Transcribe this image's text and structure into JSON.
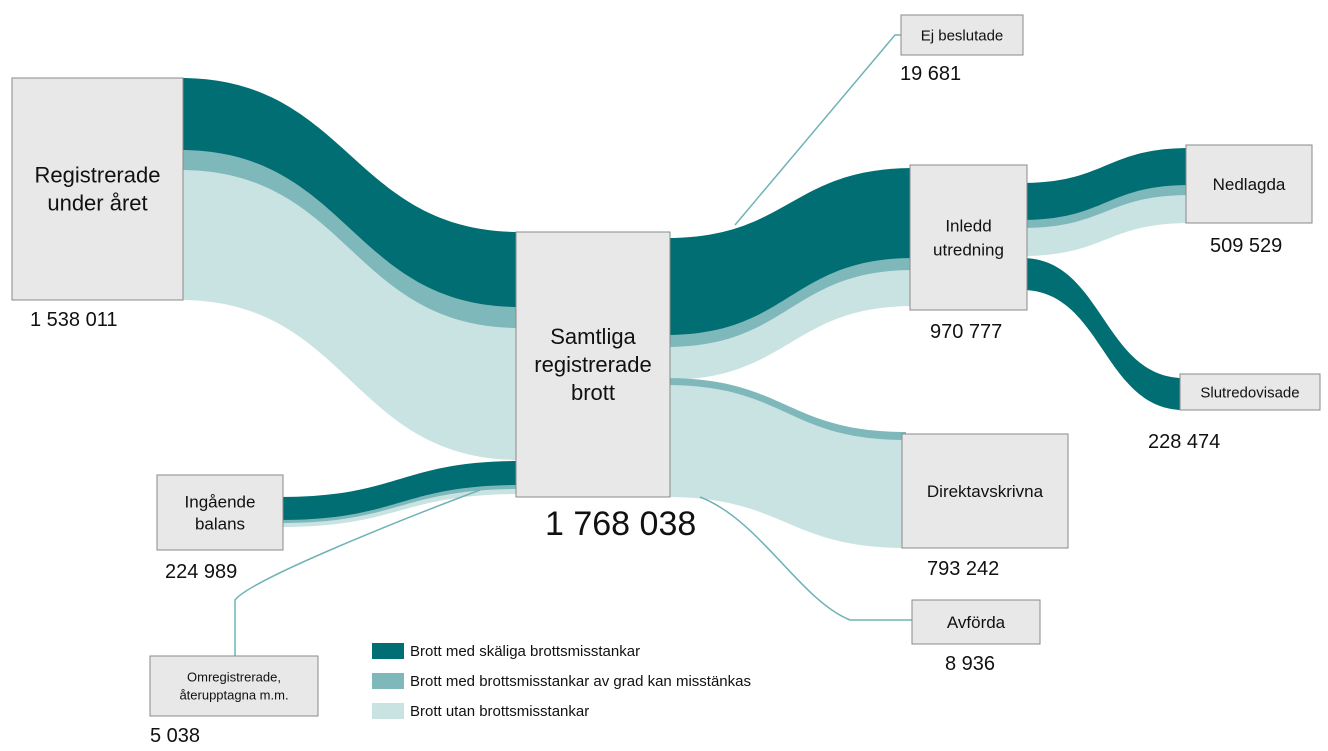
{
  "nodes": [
    {
      "label": [
        "Registrerade",
        "under året"
      ],
      "value": "1 538 011"
    },
    {
      "label": [
        "Samtliga",
        "registrerade",
        "brott"
      ],
      "value": "1 768 038"
    },
    {
      "label": [
        "Ingående",
        "balans"
      ],
      "value": "224 989"
    },
    {
      "label": [
        "Omregistrerade,",
        "återupptagna m.m."
      ],
      "value": "5 038"
    },
    {
      "label": [
        "Ej beslutade"
      ],
      "value": "19 681"
    },
    {
      "label": [
        "Inledd",
        "utredning"
      ],
      "value": "970 777"
    },
    {
      "label": [
        "Nedlagda"
      ],
      "value": "509 529"
    },
    {
      "label": [
        "Slutredovisade"
      ],
      "value": "228 474"
    },
    {
      "label": [
        "Direktavskrivna"
      ],
      "value": "793 242"
    },
    {
      "label": [
        "Avförda"
      ],
      "value": "8 936"
    }
  ],
  "legend": [
    "Brott med skäliga brottsmisstankar",
    "Brott med brottsmisstankar av grad kan misstänkas",
    "Brott utan brottsmisstankar"
  ]
}
